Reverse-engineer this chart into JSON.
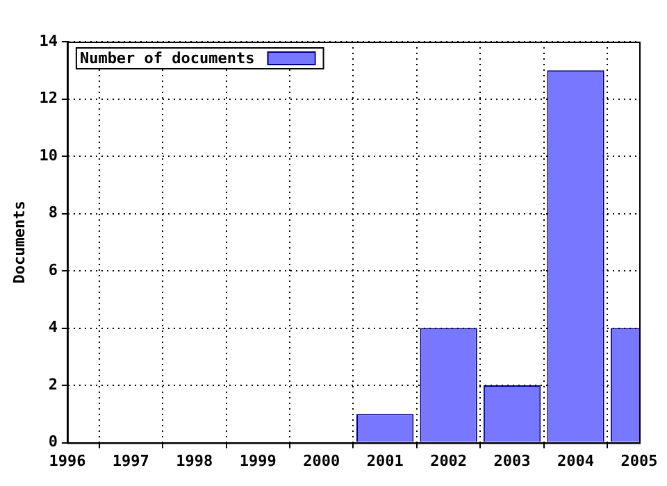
{
  "chart_data": {
    "type": "bar",
    "ylabel": "Documents",
    "x": [
      2001,
      2002,
      2003,
      2004,
      2005
    ],
    "series": [
      {
        "name": "Number of documents",
        "color": "#7777ff",
        "values": [
          1,
          4,
          2,
          13,
          4
        ]
      }
    ],
    "xlim": [
      1996,
      2005
    ],
    "xticks": [
      1996,
      1997,
      1998,
      1999,
      2000,
      2001,
      2002,
      2003,
      2004,
      2005
    ],
    "ylim": [
      0,
      14
    ],
    "yticks": [
      0,
      2,
      4,
      6,
      8,
      10,
      12,
      14
    ],
    "grid": true,
    "legend": "top left"
  }
}
